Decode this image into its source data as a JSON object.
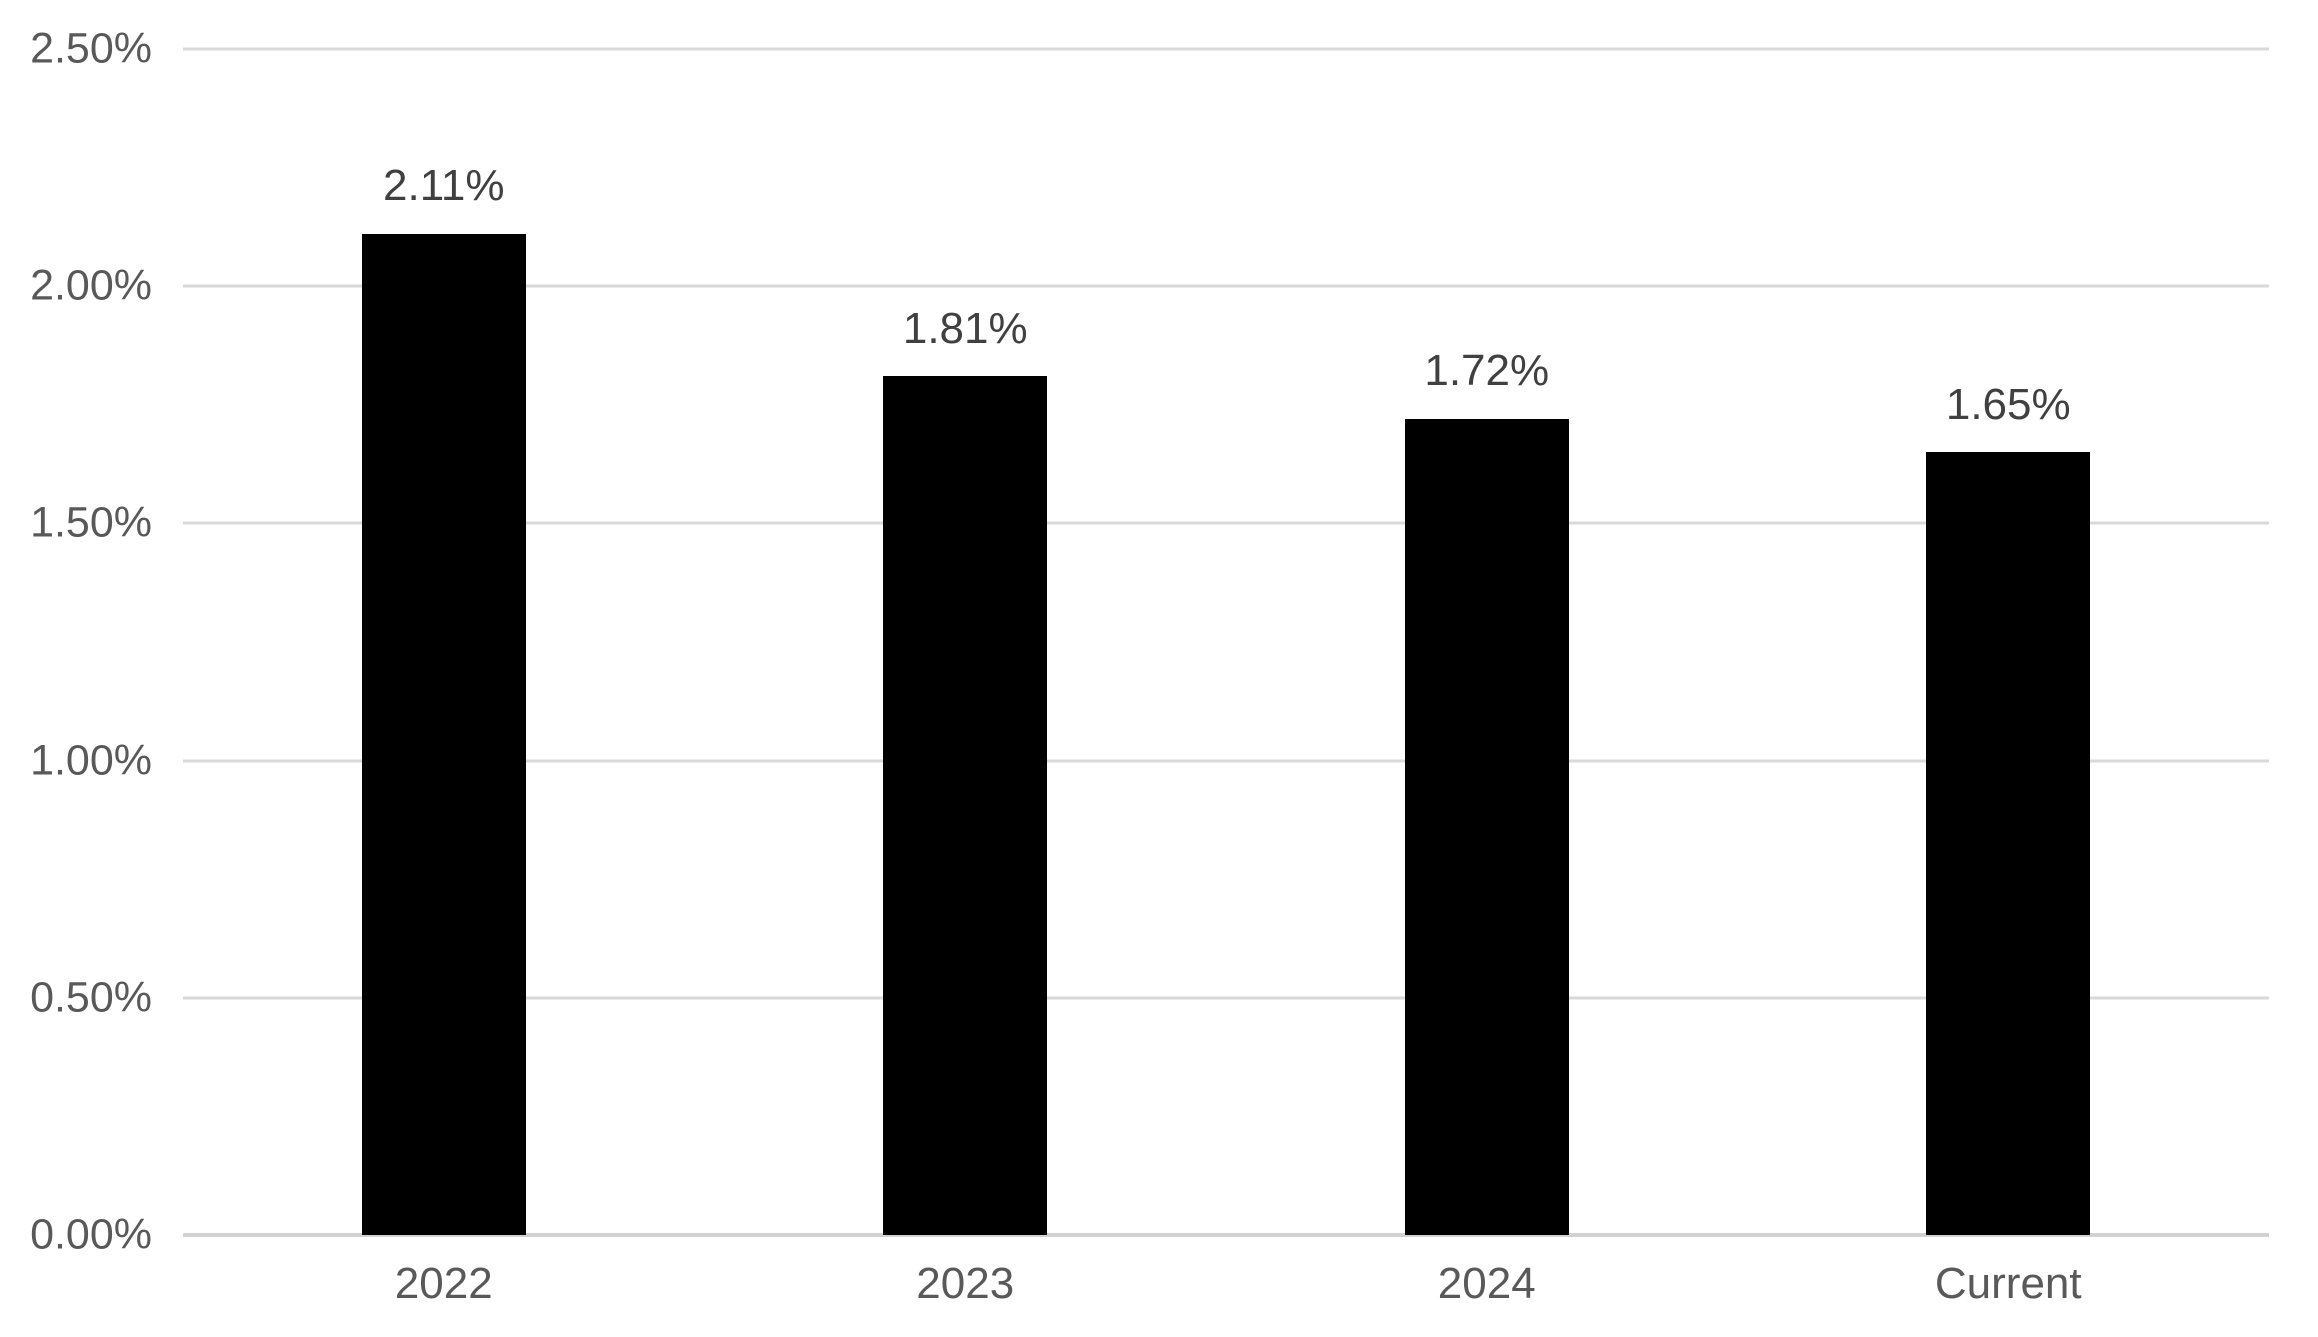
{
  "chart_data": {
    "type": "bar",
    "title": "",
    "xlabel": "",
    "ylabel": "",
    "categories": [
      "2022",
      "2023",
      "2024",
      "Current"
    ],
    "values": [
      2.11,
      1.81,
      1.72,
      1.65
    ],
    "value_labels": [
      "2.11%",
      "1.81%",
      "1.72%",
      "1.65%"
    ],
    "ylim": [
      0,
      2.5
    ],
    "y_ticks": [
      {
        "value": 0.0,
        "label": "0.00%"
      },
      {
        "value": 0.5,
        "label": "0.50%"
      },
      {
        "value": 1.0,
        "label": "1.00%"
      },
      {
        "value": 1.5,
        "label": "1.50%"
      },
      {
        "value": 2.0,
        "label": "2.00%"
      },
      {
        "value": 2.5,
        "label": "2.50%"
      }
    ],
    "grid": "horizontal",
    "legend": "none",
    "colors": {
      "bar": "#000000",
      "gridline": "#d9d9d9",
      "axis_line": "#d2d2d2",
      "tick_text": "#595959",
      "category_text": "#595959",
      "data_label_text": "#404040",
      "background": "#ffffff"
    }
  }
}
